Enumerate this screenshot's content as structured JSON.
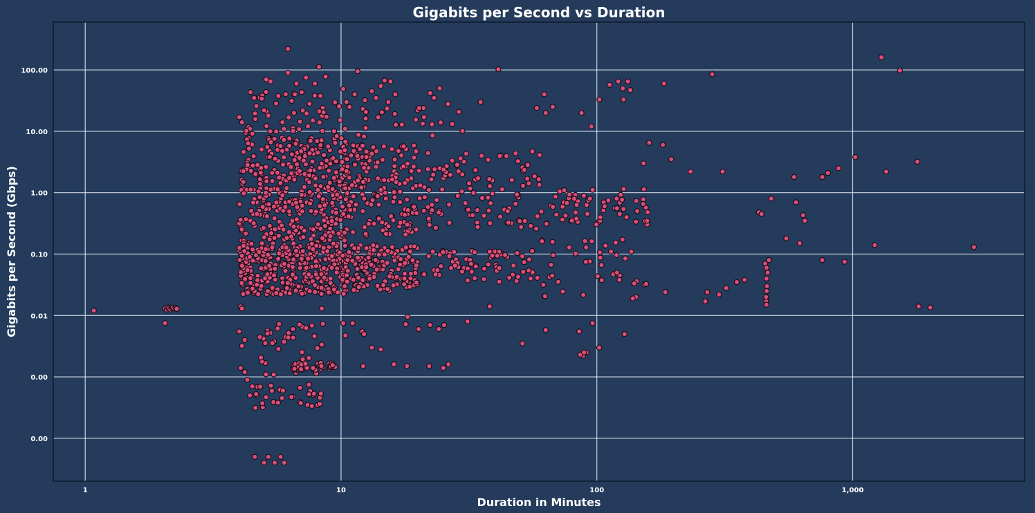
{
  "chart_data": {
    "type": "scatter",
    "title": "Gigabits per Second vs Duration",
    "xlabel": "Duration in Minutes",
    "ylabel": "Gigabits per Second (Gbps)",
    "x_scale": "log",
    "y_scale": "log",
    "xlim": [
      0.75,
      4700
    ],
    "ylim": [
      2e-05,
      600
    ],
    "x_ticks": [
      {
        "value": 1,
        "label": "1"
      },
      {
        "value": 10,
        "label": "10"
      },
      {
        "value": 100,
        "label": "100"
      },
      {
        "value": 1000,
        "label": "1,000"
      }
    ],
    "y_ticks": [
      {
        "value": 0.0001,
        "label": "0.00"
      },
      {
        "value": 0.001,
        "label": "0.00"
      },
      {
        "value": 0.01,
        "label": "0.01"
      },
      {
        "value": 0.1,
        "label": "0.10"
      },
      {
        "value": 1,
        "label": "1.00"
      },
      {
        "value": 10,
        "label": "10.00"
      },
      {
        "value": 100,
        "label": "100.00"
      }
    ],
    "grid": true,
    "point_color": "#d94f78",
    "point_edge_color": "#1a0f1a",
    "background_color": "#243b5c",
    "points": [
      [
        1.08,
        0.012
      ],
      [
        2.05,
        0.0075
      ],
      [
        2.05,
        0.013
      ],
      [
        2.08,
        0.0125
      ],
      [
        2.1,
        0.0135
      ],
      [
        2.12,
        0.013
      ],
      [
        2.15,
        0.0125
      ],
      [
        2.18,
        0.013
      ],
      [
        2.2,
        0.0135
      ],
      [
        2.23,
        0.013
      ],
      [
        2.26,
        0.0132
      ],
      [
        2.28,
        0.0128
      ],
      [
        4.0,
        17
      ],
      [
        4.1,
        14
      ],
      [
        4.05,
        0.014
      ],
      [
        4.1,
        0.013
      ],
      [
        4.0,
        0.0055
      ],
      [
        4.2,
        0.004
      ],
      [
        4.1,
        0.0032
      ],
      [
        4.05,
        0.0014
      ],
      [
        4.2,
        0.0012
      ],
      [
        4.3,
        0.0009
      ],
      [
        4.5,
        0.0007
      ],
      [
        4.4,
        0.0005
      ],
      [
        4.6,
        5e-05
      ],
      [
        5.0,
        4e-05
      ],
      [
        5.2,
        5e-05
      ],
      [
        5.5,
        4e-05
      ],
      [
        5.8,
        5e-05
      ],
      [
        6.0,
        4e-05
      ],
      [
        5.1,
        70
      ],
      [
        5.3,
        65
      ],
      [
        4.9,
        34
      ],
      [
        5.0,
        22
      ],
      [
        5.2,
        18
      ],
      [
        6.2,
        220
      ],
      [
        6.2,
        90
      ],
      [
        6.6,
        40
      ],
      [
        6.7,
        60
      ],
      [
        7.3,
        75
      ],
      [
        7.9,
        60
      ],
      [
        8.2,
        112
      ],
      [
        8.7,
        78
      ],
      [
        10.2,
        49
      ],
      [
        10.5,
        30
      ],
      [
        10.8,
        25
      ],
      [
        11.3,
        40
      ],
      [
        11.6,
        95
      ],
      [
        12.4,
        32
      ],
      [
        13.2,
        45
      ],
      [
        13.7,
        35
      ],
      [
        14.3,
        55
      ],
      [
        14.8,
        67
      ],
      [
        15.3,
        30
      ],
      [
        15.6,
        65
      ],
      [
        16.3,
        40
      ],
      [
        20.2,
        24
      ],
      [
        21.1,
        17
      ],
      [
        22.3,
        42
      ],
      [
        23.1,
        35
      ],
      [
        24.3,
        50
      ],
      [
        26.2,
        28
      ],
      [
        35.1,
        30
      ],
      [
        41.2,
        102
      ],
      [
        58.2,
        24
      ],
      [
        62.3,
        40
      ],
      [
        63.1,
        20
      ],
      [
        67.2,
        25
      ],
      [
        87.1,
        20
      ],
      [
        95.2,
        12
      ],
      [
        102.3,
        33
      ],
      [
        112.1,
        57
      ],
      [
        121.2,
        65
      ],
      [
        126.3,
        50
      ],
      [
        127.1,
        33
      ],
      [
        132.2,
        65
      ],
      [
        135.1,
        47
      ],
      [
        183.2,
        60
      ],
      [
        282.3,
        85
      ],
      [
        1295,
        160
      ],
      [
        1530,
        98
      ],
      [
        160.2,
        6.5
      ],
      [
        181.1,
        6.0
      ],
      [
        195.3,
        3.5
      ],
      [
        152.2,
        3.0
      ],
      [
        232.4,
        2.2
      ],
      [
        310.1,
        2.2
      ],
      [
        1024,
        3.8
      ],
      [
        1352,
        2.2
      ],
      [
        1790,
        3.2
      ],
      [
        880.2,
        2.5
      ],
      [
        800.1,
        2.1
      ],
      [
        760.2,
        1.8
      ],
      [
        590.3,
        1.8
      ],
      [
        480.1,
        0.8
      ],
      [
        430.2,
        0.48
      ],
      [
        440.3,
        0.45
      ],
      [
        640.1,
        0.43
      ],
      [
        600.2,
        0.7
      ],
      [
        650.3,
        0.35
      ],
      [
        550.1,
        0.18
      ],
      [
        620.2,
        0.15
      ],
      [
        760.3,
        0.08
      ],
      [
        930.1,
        0.075
      ],
      [
        1220,
        0.14
      ],
      [
        2980,
        0.13
      ],
      [
        1810,
        0.014
      ],
      [
        2010,
        0.0135
      ],
      [
        470.1,
        0.08
      ],
      [
        455.2,
        0.07
      ],
      [
        460.3,
        0.06
      ],
      [
        465.1,
        0.05
      ],
      [
        460.2,
        0.04
      ],
      [
        462.3,
        0.03
      ],
      [
        461.1,
        0.025
      ],
      [
        458.2,
        0.02
      ],
      [
        459.3,
        0.017
      ],
      [
        460.1,
        0.015
      ],
      [
        352.2,
        0.035
      ],
      [
        378.1,
        0.038
      ],
      [
        320.3,
        0.028
      ],
      [
        300.1,
        0.022
      ],
      [
        270.2,
        0.024
      ],
      [
        265.3,
        0.017
      ],
      [
        185.1,
        0.024
      ],
      [
        142.2,
        0.02
      ],
      [
        138.1,
        0.019
      ],
      [
        128.3,
        0.005
      ],
      [
        102.1,
        0.003
      ],
      [
        96.2,
        0.0075
      ],
      [
        91.1,
        0.0025
      ],
      [
        88.3,
        0.0022
      ],
      [
        86.2,
        0.0023
      ],
      [
        89.1,
        0.0025
      ],
      [
        85.3,
        0.0055
      ],
      [
        51.2,
        0.0035
      ],
      [
        63.1,
        0.0058
      ],
      [
        18.2,
        0.0095
      ],
      [
        17.9,
        0.0072
      ],
      [
        20.1,
        0.006
      ],
      [
        22.3,
        0.007
      ],
      [
        24.1,
        0.006
      ],
      [
        25.3,
        0.007
      ],
      [
        22.1,
        0.0015
      ],
      [
        25.1,
        0.0014
      ],
      [
        26.3,
        0.0016
      ],
      [
        12.2,
        0.0015
      ],
      [
        14.3,
        0.0028
      ],
      [
        16.1,
        0.0016
      ],
      [
        18.1,
        0.0015
      ],
      [
        12.1,
        0.0055
      ],
      [
        12.3,
        0.005
      ],
      [
        13.2,
        0.003
      ],
      [
        10.2,
        0.0075
      ],
      [
        10.4,
        0.0047
      ],
      [
        11.1,
        0.0075
      ],
      [
        31.2,
        0.008
      ],
      [
        38.1,
        0.014
      ],
      [
        8.4,
        0.013
      ]
    ],
    "clusters": [
      {
        "xmin": 4.0,
        "xmax": 10.5,
        "ymin": 0.15,
        "ymax": 8.0,
        "n": 420,
        "seed": 11
      },
      {
        "xmin": 4.0,
        "xmax": 10.5,
        "ymin": 0.022,
        "ymax": 0.15,
        "n": 360,
        "seed": 23
      },
      {
        "xmin": 10.0,
        "xmax": 20.0,
        "ymin": 0.2,
        "ymax": 6.0,
        "n": 180,
        "seed": 37
      },
      {
        "xmin": 10.0,
        "xmax": 20.0,
        "ymin": 0.025,
        "ymax": 0.14,
        "n": 170,
        "seed": 41
      },
      {
        "xmin": 20.0,
        "xmax": 60.0,
        "ymin": 0.25,
        "ymax": 5.0,
        "n": 110,
        "seed": 53
      },
      {
        "xmin": 20.0,
        "xmax": 60.0,
        "ymin": 0.035,
        "ymax": 0.12,
        "n": 70,
        "seed": 61
      },
      {
        "xmin": 60.0,
        "xmax": 160.0,
        "ymin": 0.3,
        "ymax": 1.2,
        "n": 60,
        "seed": 71
      },
      {
        "xmin": 60.0,
        "xmax": 160.0,
        "ymin": 0.02,
        "ymax": 0.2,
        "n": 40,
        "seed": 83
      },
      {
        "xmin": 4.6,
        "xmax": 8.5,
        "ymin": 0.0003,
        "ymax": 0.009,
        "n": 70,
        "seed": 97
      },
      {
        "xmin": 6.3,
        "xmax": 9.5,
        "ymin": 0.0013,
        "ymax": 0.0017,
        "n": 40,
        "seed": 101
      },
      {
        "xmin": 4.2,
        "xmax": 8.5,
        "ymin": 9.0,
        "ymax": 45.0,
        "n": 45,
        "seed": 113
      },
      {
        "xmin": 8.5,
        "xmax": 30.0,
        "ymin": 8.0,
        "ymax": 30.0,
        "n": 30,
        "seed": 127
      }
    ]
  }
}
